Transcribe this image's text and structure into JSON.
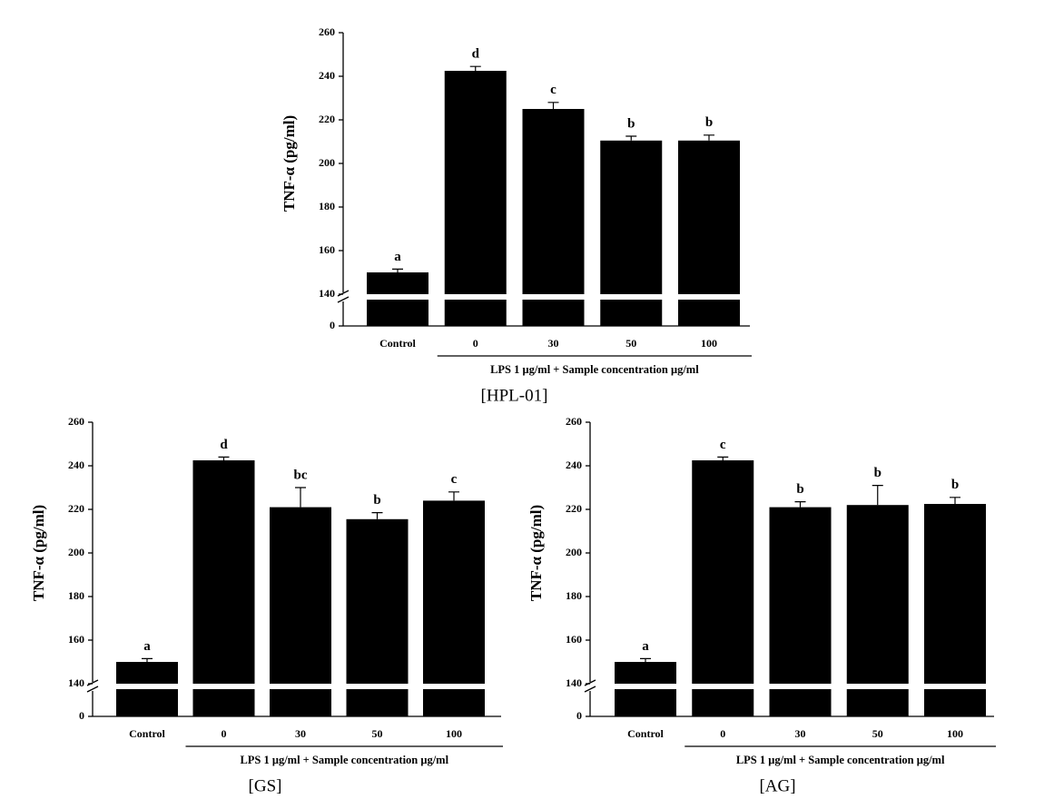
{
  "chart_data": [
    {
      "type": "bar",
      "caption": "[HPL-01]",
      "ylabel": "TNF-α (pg/ml)",
      "xlabel": "LPS 1 μg/ml + Sample concentration μg/ml",
      "categories": [
        "Control",
        "0",
        "30",
        "50",
        "100"
      ],
      "values": [
        150,
        242.5,
        225,
        210.5,
        210.5
      ],
      "errors": [
        1.5,
        2,
        3,
        2,
        2.5
      ],
      "value_labels": [
        "a",
        "d",
        "c",
        "b",
        "b"
      ],
      "color": "#000000",
      "ylim": [
        0,
        260
      ],
      "yticks": [
        0,
        140,
        160,
        180,
        200,
        220,
        240,
        260
      ],
      "axis_break": true
    },
    {
      "type": "bar",
      "caption": "[GS]",
      "ylabel": "TNF-α (pg/ml)",
      "xlabel": "LPS 1 μg/ml + Sample concentration μg/ml",
      "categories": [
        "Control",
        "0",
        "30",
        "50",
        "100"
      ],
      "values": [
        150,
        242.5,
        221,
        215.5,
        224
      ],
      "errors": [
        1.5,
        1.5,
        9,
        3,
        4
      ],
      "value_labels": [
        "a",
        "d",
        "bc",
        "b",
        "c"
      ],
      "color": "#000000",
      "ylim": [
        0,
        260
      ],
      "yticks": [
        0,
        140,
        160,
        180,
        200,
        220,
        240,
        260
      ],
      "axis_break": true
    },
    {
      "type": "bar",
      "caption": "[AG]",
      "ylabel": "TNF-α (pg/ml)",
      "xlabel": "LPS 1 μg/ml + Sample concentration μg/ml",
      "categories": [
        "Control",
        "0",
        "30",
        "50",
        "100"
      ],
      "values": [
        150,
        242.5,
        221,
        222,
        222.5
      ],
      "errors": [
        1.5,
        1.5,
        2.5,
        9,
        3
      ],
      "value_labels": [
        "a",
        "c",
        "b",
        "b",
        "b"
      ],
      "color": "#000000",
      "ylim": [
        0,
        260
      ],
      "yticks": [
        0,
        140,
        160,
        180,
        200,
        220,
        240,
        260
      ],
      "axis_break": true
    }
  ]
}
